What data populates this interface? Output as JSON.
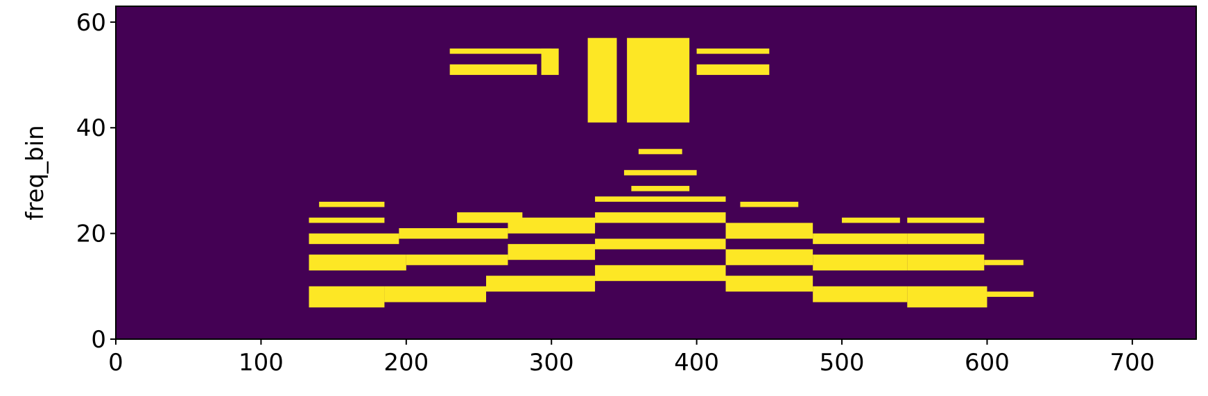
{
  "chart_data": {
    "type": "heatmap",
    "title": "",
    "xlabel": "",
    "ylabel": "freq_bin",
    "xlim": [
      0,
      744
    ],
    "ylim": [
      0,
      63
    ],
    "x_ticks": [
      0,
      100,
      200,
      300,
      400,
      500,
      600,
      700
    ],
    "x_tick_labels": [
      "0",
      "100",
      "200",
      "300",
      "400",
      "500",
      "600",
      "700"
    ],
    "y_ticks": [
      0,
      20,
      40,
      60
    ],
    "y_tick_labels": [
      "0",
      "20",
      "40",
      "60"
    ],
    "grid": false,
    "legend": "none",
    "colormap": {
      "low": "#440154",
      "high": "#fde725",
      "mid": "#5ec962"
    },
    "background_value": 0,
    "high_regions": [
      {
        "x": [
          133,
          185
        ],
        "y": [
          6,
          10
        ]
      },
      {
        "x": [
          185,
          255
        ],
        "y": [
          7,
          10
        ]
      },
      {
        "x": [
          255,
          330
        ],
        "y": [
          9,
          12
        ]
      },
      {
        "x": [
          330,
          420
        ],
        "y": [
          11,
          14
        ]
      },
      {
        "x": [
          420,
          480
        ],
        "y": [
          9,
          12
        ]
      },
      {
        "x": [
          480,
          545
        ],
        "y": [
          7,
          10
        ]
      },
      {
        "x": [
          545,
          600
        ],
        "y": [
          6,
          10
        ]
      },
      {
        "x": [
          600,
          632
        ],
        "y": [
          8,
          9
        ]
      },
      {
        "x": [
          133,
          200
        ],
        "y": [
          13,
          16
        ]
      },
      {
        "x": [
          200,
          270
        ],
        "y": [
          14,
          16
        ]
      },
      {
        "x": [
          270,
          330
        ],
        "y": [
          15,
          18
        ]
      },
      {
        "x": [
          330,
          420
        ],
        "y": [
          17,
          19
        ]
      },
      {
        "x": [
          420,
          480
        ],
        "y": [
          14,
          17
        ]
      },
      {
        "x": [
          480,
          545
        ],
        "y": [
          13,
          16
        ]
      },
      {
        "x": [
          545,
          598
        ],
        "y": [
          13,
          16
        ]
      },
      {
        "x": [
          598,
          625
        ],
        "y": [
          14,
          15
        ]
      },
      {
        "x": [
          133,
          195
        ],
        "y": [
          18,
          20
        ]
      },
      {
        "x": [
          195,
          270
        ],
        "y": [
          19,
          21
        ]
      },
      {
        "x": [
          270,
          330
        ],
        "y": [
          20,
          23
        ]
      },
      {
        "x": [
          330,
          420
        ],
        "y": [
          22,
          24
        ]
      },
      {
        "x": [
          420,
          480
        ],
        "y": [
          19,
          22
        ]
      },
      {
        "x": [
          480,
          545
        ],
        "y": [
          18,
          20
        ]
      },
      {
        "x": [
          545,
          598
        ],
        "y": [
          18,
          20
        ]
      },
      {
        "x": [
          133,
          185
        ],
        "y": [
          22,
          23
        ]
      },
      {
        "x": [
          235,
          280
        ],
        "y": [
          22,
          24
        ]
      },
      {
        "x": [
          500,
          540
        ],
        "y": [
          22,
          23
        ]
      },
      {
        "x": [
          545,
          598
        ],
        "y": [
          22,
          23
        ]
      },
      {
        "x": [
          330,
          420
        ],
        "y": [
          26,
          27
        ]
      },
      {
        "x": [
          355,
          395
        ],
        "y": [
          28,
          29
        ]
      },
      {
        "x": [
          140,
          185
        ],
        "y": [
          25,
          26
        ]
      },
      {
        "x": [
          430,
          470
        ],
        "y": [
          25,
          26
        ]
      },
      {
        "x": [
          350,
          400
        ],
        "y": [
          31,
          32
        ]
      },
      {
        "x": [
          360,
          390
        ],
        "y": [
          35,
          36
        ]
      },
      {
        "x": [
          325,
          345
        ],
        "y": [
          41,
          57
        ]
      },
      {
        "x": [
          352,
          395
        ],
        "y": [
          41,
          57
        ]
      },
      {
        "x": [
          293,
          305
        ],
        "y": [
          50,
          55
        ]
      },
      {
        "x": [
          230,
          290
        ],
        "y": [
          50,
          52
        ]
      },
      {
        "x": [
          400,
          450
        ],
        "y": [
          50,
          52
        ]
      },
      {
        "x": [
          230,
          300
        ],
        "y": [
          54,
          55
        ]
      },
      {
        "x": [
          400,
          450
        ],
        "y": [
          54,
          55
        ]
      }
    ]
  }
}
